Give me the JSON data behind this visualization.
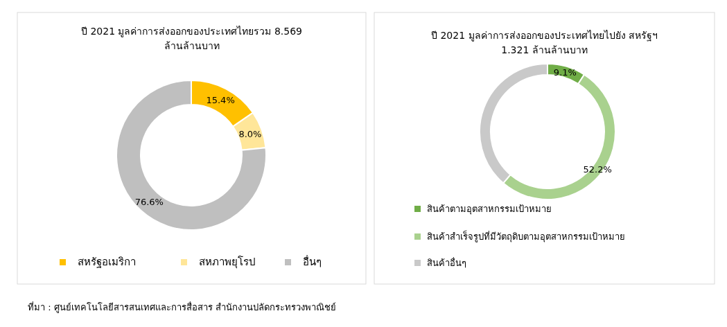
{
  "chart_data": [
    {
      "type": "donut",
      "title": "ปี 2021 มูลค่าการส่งออกของประเทศไทยรวม 8.569 ล้านล้านบาท",
      "categories": [
        "สหรัฐอเมริกา",
        "สหภาพยุโรป",
        "อื่นๆ"
      ],
      "values": [
        15.4,
        8.0,
        76.6
      ],
      "colors": [
        "#ffc000",
        "#ffe699",
        "#bfbfbf"
      ],
      "value_labels": [
        "15.4%",
        "8.0%",
        "76.6%"
      ],
      "legend": "bottom",
      "annotations": [
        "ที่มา : ศูนย์เทคโนโลยีสารสนเทศและการสื่อสาร สำนักงานปลัดกระทรวงพาณิชย์"
      ]
    },
    {
      "type": "donut",
      "title": "ปี 2021 มูลค่าการส่งออกของประเทศไทยไปยัง สหรัฐฯ 1.321 ล้านล้านบาท",
      "categories": [
        "สินค้าตามอุตสาหกรรมเป้าหมาย",
        "สินค้าสำเร็จรูปที่มีวัตถุดิบตามอุตสาหกรรมเป้าหมาย",
        "สินค้าอื่นๆ"
      ],
      "values": [
        9.1,
        52.2,
        38.7
      ],
      "colors": [
        "#70ad47",
        "#a9d18e",
        "#c9c9c9"
      ],
      "value_labels": [
        "9.1%",
        "52.2%",
        null
      ],
      "legend": "bottom"
    }
  ]
}
